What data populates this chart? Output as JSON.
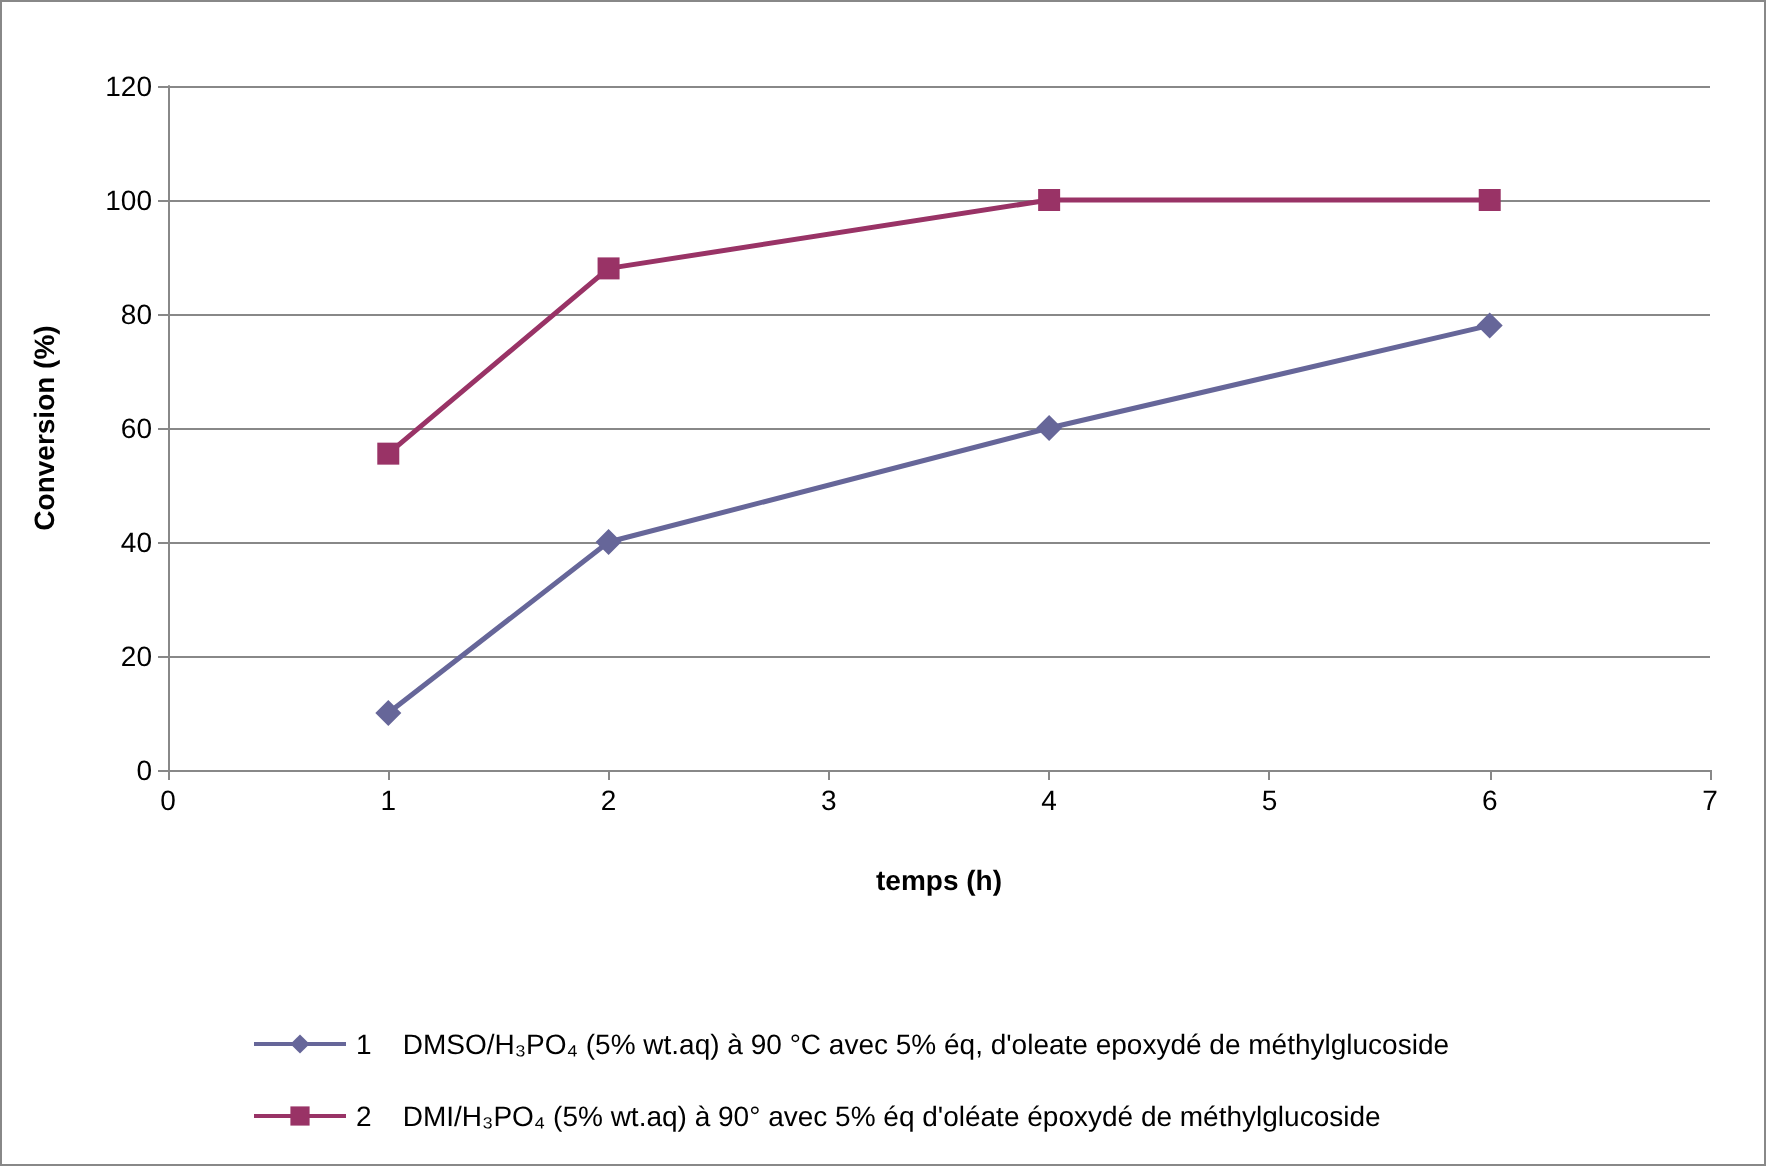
{
  "chart_data": {
    "type": "line",
    "xlabel": "temps (h)",
    "ylabel": "Conversion (%)",
    "xlim": [
      0,
      7
    ],
    "xticks": [
      0,
      1,
      2,
      3,
      4,
      5,
      6,
      7
    ],
    "ylim": [
      0,
      120
    ],
    "yticks": [
      0,
      20,
      40,
      60,
      80,
      100,
      120
    ],
    "grid": "y",
    "legend": "bottom",
    "series": [
      {
        "name": "1    DMSO/H₃PO₄ (5% wt.aq) à 90 °C avec 5% éq, d'oleate epoxydé de méthylglucoside",
        "color": "#666699",
        "marker": "diamond",
        "x": [
          1,
          2,
          4,
          6
        ],
        "values": [
          10,
          40,
          60,
          78
        ]
      },
      {
        "name": "2    DMI/H₃PO₄ (5% wt.aq) à 90° avec 5% éq d'oléate époxydé de méthylglucoside",
        "color": "#993366",
        "marker": "square",
        "x": [
          1,
          2,
          4,
          6
        ],
        "values": [
          55.5,
          88,
          100,
          100
        ]
      }
    ]
  }
}
